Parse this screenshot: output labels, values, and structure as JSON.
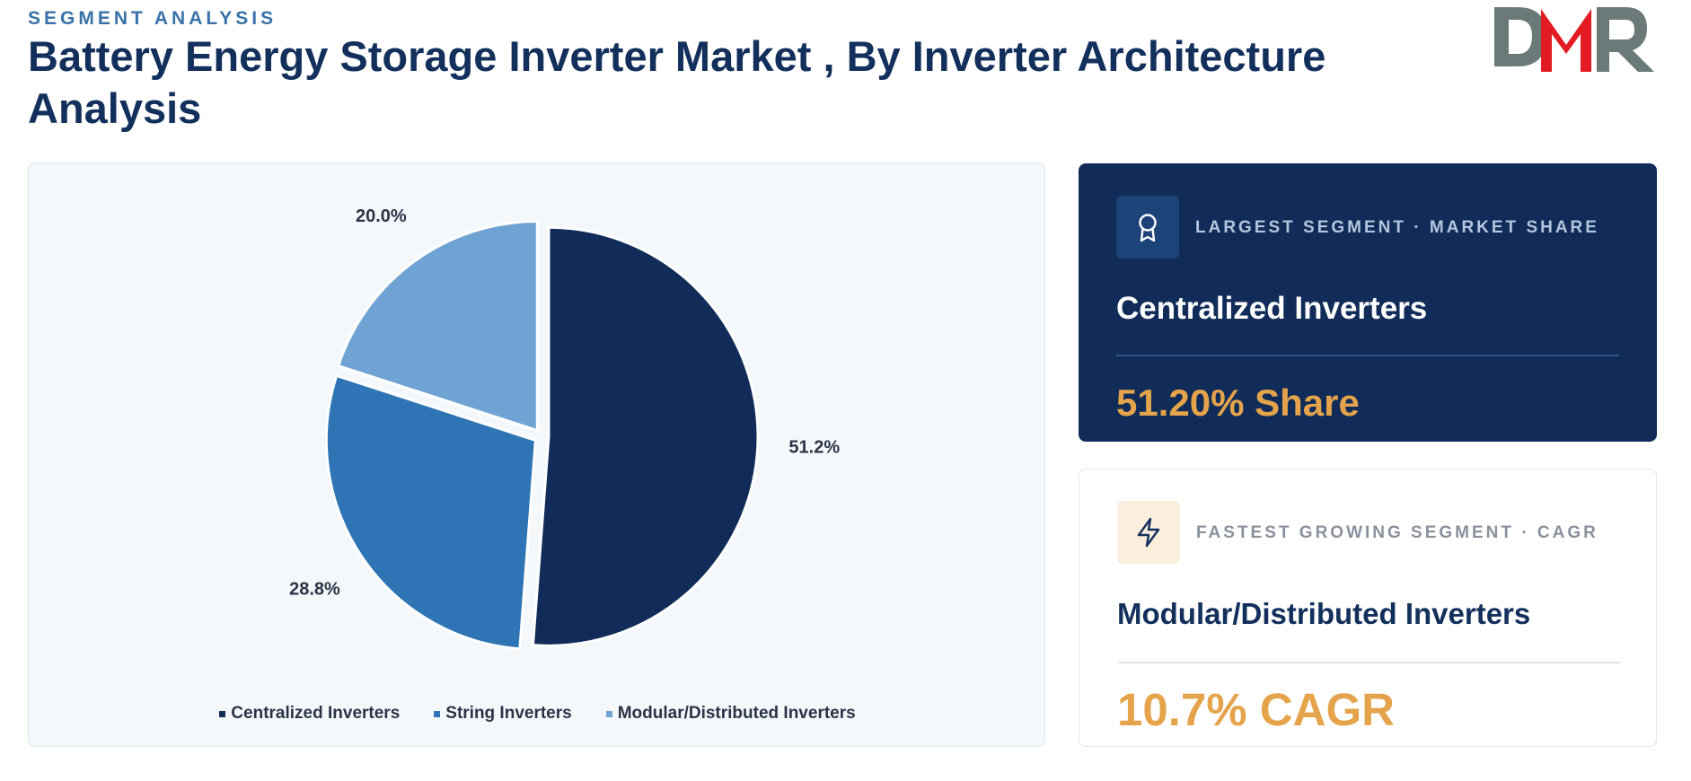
{
  "header": {
    "kicker": "SEGMENT ANALYSIS",
    "title": "Battery Energy Storage Inverter Market , By Inverter Architecture Analysis"
  },
  "logo": {
    "text": "DMR",
    "colors": {
      "d": "#6b7a78",
      "m": "#e31b23",
      "r": "#6b7a78"
    }
  },
  "chart_data": {
    "type": "pie",
    "categories": [
      "Centralized Inverters",
      "String Inverters",
      "Modular/Distributed Inverters"
    ],
    "values": [
      51.2,
      28.8,
      20.0
    ],
    "labels": [
      "51.2%",
      "28.8%",
      "20.0%"
    ],
    "colors": [
      "#112c59",
      "#2f75b5",
      "#6fa3d3"
    ],
    "legend_position": "bottom"
  },
  "cards": {
    "largest": {
      "label": "LARGEST SEGMENT  ·  MARKET SHARE",
      "name": "Centralized Inverters",
      "value": "51.20% Share",
      "icon": "award-icon"
    },
    "fastest": {
      "label": "FASTEST GROWING SEGMENT  ·  CAGR",
      "name": "Modular/Distributed Inverters",
      "value": "10.7% CAGR",
      "icon": "lightning-icon"
    }
  }
}
